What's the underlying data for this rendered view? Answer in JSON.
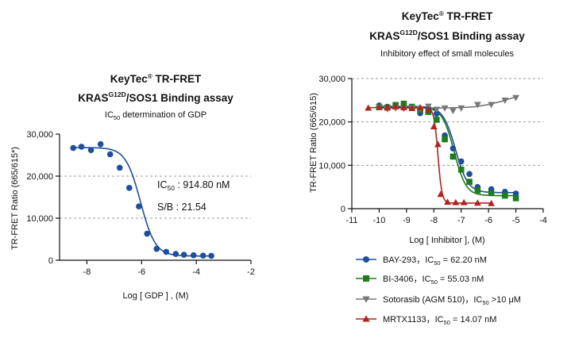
{
  "chart_data": [
    {
      "type": "scatter",
      "title_prefix": "KeyTec",
      "title_reg": "®",
      "title_rest": " TR-FRET",
      "title2_pre": "KRAS",
      "title2_sup": "G12D",
      "title2_post": "/SOS1 Binding assay",
      "subtitle_pre": "IC",
      "subtitle_sub": "50",
      "subtitle_post": " determination of GDP",
      "xlabel": "Log [ GDP ] , (M)",
      "ylabel": "TR-FRET Ratio (665/615*)",
      "xlim": [
        -9,
        -2
      ],
      "ylim": [
        0,
        30000
      ],
      "xticks": [
        -8,
        -6,
        -4,
        -2
      ],
      "yticks": [
        0,
        10000,
        20000,
        30000
      ],
      "ytick_labels": [
        "0",
        "10,000",
        "20,000",
        "30,000"
      ],
      "grid_y": [
        10000,
        20000
      ],
      "annotation_ic50_pre": "IC",
      "annotation_ic50_sub": "50",
      "annotation_ic50_post": " : 914.80 nM",
      "annotation_sb": "S/B : 21.54",
      "series": [
        {
          "color": "#1f4e9c",
          "marker": "circle",
          "x": [
            -8.5,
            -8.2,
            -7.85,
            -7.5,
            -7.15,
            -6.8,
            -6.45,
            -6.1,
            -5.8,
            -5.45,
            -5.1,
            -4.75,
            -4.45,
            -4.1,
            -3.75,
            -3.45
          ],
          "y": [
            26700,
            27000,
            26200,
            27600,
            25200,
            22000,
            17200,
            12800,
            6300,
            2700,
            2000,
            1500,
            1300,
            1200,
            1100,
            1050
          ],
          "fit": {
            "top": 26800,
            "bottom": 1000,
            "logec50": -6.04,
            "hill": 1.6
          }
        }
      ]
    },
    {
      "type": "scatter",
      "title_prefix": "KeyTec",
      "title_reg": "®",
      "title_rest": " TR-FRET",
      "title2_pre": "KRAS",
      "title2_sup": "G12D",
      "title2_post": "/SOS1 Binding assay",
      "subtitle": "Inhibitory effect of small molecules",
      "xlabel": "Log [ Inhibitor ], (M)",
      "ylabel": "TR-FRET Ratio (665/615)",
      "xlim": [
        -11,
        -4
      ],
      "ylim": [
        0,
        30000
      ],
      "xticks": [
        -11,
        -10,
        -9,
        -8,
        -7,
        -6,
        -5,
        -4
      ],
      "yticks": [
        0,
        10000,
        20000,
        30000
      ],
      "ytick_labels": [
        "0",
        "10,000",
        "20,000",
        "30,000"
      ],
      "grid_y": [
        10000,
        20000,
        30000
      ],
      "legend_position": "bottom",
      "series": [
        {
          "name_pre": "BAY-293，IC",
          "name_sub": "50",
          "name_post": " = 62.20 nM",
          "color": "#1f4e9c",
          "marker": "circle",
          "x": [
            -10,
            -9.7,
            -9.4,
            -9.1,
            -8.8,
            -8.5,
            -8.2,
            -7.9,
            -7.6,
            -7.3,
            -7.0,
            -6.7,
            -6.4,
            -5.9,
            -5.4,
            -5.0
          ],
          "y": [
            23800,
            23500,
            23800,
            23600,
            23300,
            22000,
            23100,
            21900,
            16900,
            13900,
            10900,
            8000,
            5000,
            4500,
            3900,
            3500
          ],
          "fit": {
            "top": 23600,
            "bottom": 3700,
            "logec50": -7.21,
            "hill": 1.9
          }
        },
        {
          "name_pre": "BI-3406，IC",
          "name_sub": "50",
          "name_post": " = 55.03 nM",
          "color": "#1e7b1e",
          "marker": "square",
          "x": [
            -10,
            -9.7,
            -9.4,
            -9.1,
            -8.8,
            -8.5,
            -8.2,
            -7.9,
            -7.6,
            -7.3,
            -7.0,
            -6.7,
            -6.4,
            -5.9,
            -5.4,
            -5.0
          ],
          "y": [
            23400,
            23300,
            23900,
            24200,
            23500,
            22800,
            22300,
            20500,
            16000,
            12000,
            9000,
            6200,
            4200,
            3600,
            3000,
            2400
          ],
          "fit": {
            "top": 23400,
            "bottom": 3000,
            "logec50": -7.26,
            "hill": 2.0
          }
        },
        {
          "name_pre": "Sotorasib (AGM 510)，IC",
          "name_sub": "50",
          "name_post": " >10 μM",
          "color": "#777777",
          "marker": "triangle-down",
          "x": [
            -10,
            -9.7,
            -9.4,
            -9.1,
            -8.8,
            -8.5,
            -8.2,
            -7.9,
            -7.6,
            -7.3,
            -7.0,
            -6.4,
            -5.9,
            -5.4,
            -5.0
          ],
          "y": [
            23400,
            23000,
            23200,
            23100,
            23300,
            23000,
            23600,
            22900,
            23200,
            22600,
            23200,
            24000,
            24000,
            25000,
            25600
          ],
          "fit_curve": {
            "x": [
              -10.0,
              -8.0,
              -7.0,
              -6.5,
              -6.0,
              -5.5,
              -5.0
            ],
            "y": [
              23200,
              23200,
              23300,
              23500,
              24000,
              24800,
              25800
            ]
          }
        },
        {
          "name_pre": "MRTX1133，IC",
          "name_sub": "50",
          "name_post": " = 14.07 nM",
          "color": "#b22222",
          "marker": "triangle-up",
          "x": [
            -10.4,
            -10.0,
            -9.7,
            -9.4,
            -9.1,
            -8.8,
            -8.5,
            -8.2,
            -8.0,
            -7.85,
            -7.75,
            -7.5,
            -7.2,
            -6.9,
            -6.4,
            -5.9
          ],
          "y": [
            23200,
            23400,
            23300,
            23500,
            23300,
            23100,
            23300,
            22800,
            18900,
            14800,
            3300,
            1500,
            1400,
            1400,
            1300,
            1200
          ],
          "fit": {
            "top": 23300,
            "bottom": 1300,
            "logec50": -7.85,
            "hill": 6
          }
        }
      ]
    }
  ]
}
